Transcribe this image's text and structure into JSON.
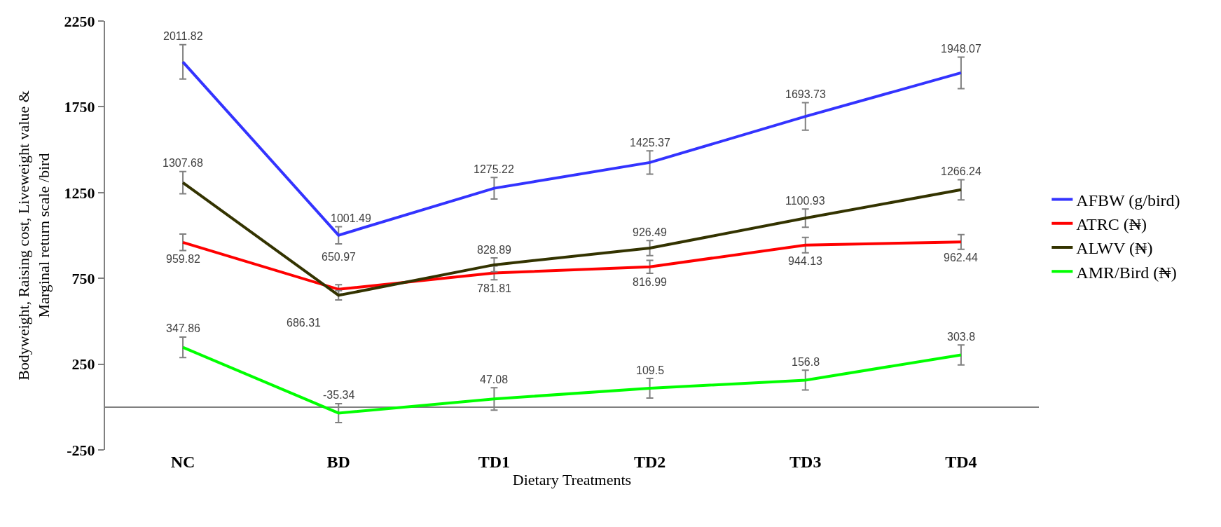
{
  "chart_data": {
    "type": "line",
    "xlabel": "Dietary Treatments",
    "ylabel": "Bodyweight, Raising cost, Liveweight value &\nMarginal return scale /bird",
    "categories": [
      "NC",
      "BD",
      "TD1",
      "TD2",
      "TD3",
      "TD4"
    ],
    "series": [
      {
        "name": "AFBW (g/bird)",
        "color": "#3333ff",
        "values": [
          2011.82,
          1001.49,
          1275.22,
          1425.37,
          1693.73,
          1948.07
        ],
        "errors": [
          100,
          50,
          63,
          68,
          80,
          92
        ]
      },
      {
        "name": "ATRC (₦)",
        "color": "#ff0000",
        "values": [
          959.82,
          686.31,
          781.81,
          816.99,
          944.13,
          962.44
        ],
        "errors": [
          48,
          27,
          40,
          38,
          45,
          43
        ]
      },
      {
        "name": "ALWV (₦)",
        "color": "#333300",
        "values": [
          1307.68,
          650.97,
          828.89,
          926.49,
          1100.93,
          1266.24
        ],
        "errors": [
          65,
          27,
          40,
          44,
          53,
          59
        ]
      },
      {
        "name": "AMR/Bird (₦)",
        "color": "#00ff00",
        "values": [
          347.86,
          -35.34,
          47.08,
          109.5,
          156.8,
          303.8
        ],
        "errors": [
          60,
          55,
          65,
          57,
          58,
          58
        ]
      }
    ],
    "ylim": [
      -250,
      2250
    ],
    "yticks": [
      -250,
      250,
      750,
      1250,
      1750,
      2250
    ],
    "data_labels": true,
    "legend": "right",
    "marker": "none",
    "line_style": "solid"
  }
}
